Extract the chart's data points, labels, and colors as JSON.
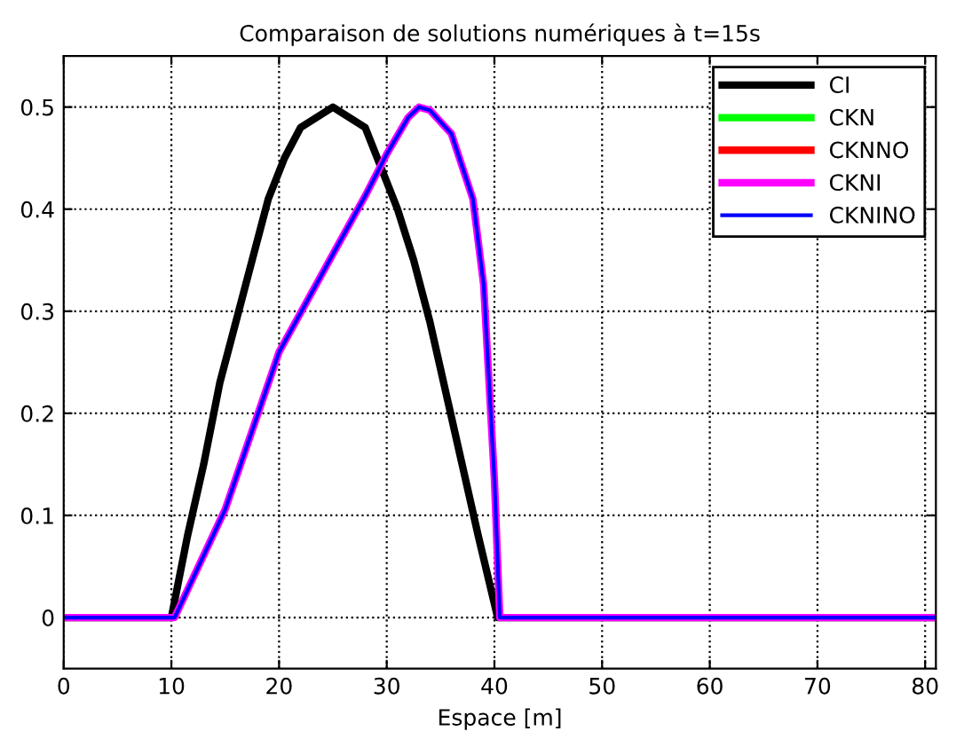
{
  "chart_data": {
    "type": "line",
    "title": "Comparaison de solutions numériques à t=15s",
    "xlabel": "Espace [m]",
    "xlim": [
      0,
      81
    ],
    "ylim": [
      -0.05,
      0.55
    ],
    "xticks": [
      0,
      10,
      20,
      30,
      40,
      50,
      60,
      70,
      80
    ],
    "yticks": [
      0,
      0.1,
      0.2,
      0.3,
      0.4,
      0.5
    ],
    "grid": true,
    "legend": "top right",
    "line_style": "solid",
    "marker": "none",
    "series": [
      {
        "name": "CI",
        "color": "#000000",
        "x": [
          0,
          10,
          11.5,
          13,
          14.5,
          16,
          17.5,
          19,
          20.5,
          22,
          23.5,
          25,
          26.5,
          28,
          29.5,
          31,
          32.5,
          34,
          35.5,
          37,
          38.5,
          40.3,
          81
        ],
        "values": [
          0,
          0,
          0.08,
          0.15,
          0.23,
          0.29,
          0.35,
          0.41,
          0.45,
          0.48,
          0.49,
          0.5,
          0.49,
          0.48,
          0.44,
          0.4,
          0.35,
          0.29,
          0.22,
          0.15,
          0.08,
          0,
          0
        ]
      },
      {
        "name": "CKN",
        "color": "#00ff00"
      },
      {
        "name": "CKNNO",
        "color": "#ff0000"
      },
      {
        "name": "CKNI",
        "color": "#ff00ff",
        "x": [
          0,
          10.3,
          15,
          20,
          25,
          28,
          30,
          32,
          33,
          34,
          36,
          38,
          39,
          40,
          40.5,
          81
        ],
        "values": [
          0,
          0,
          0.106,
          0.26,
          0.356,
          0.413,
          0.454,
          0.49,
          0.5,
          0.497,
          0.474,
          0.41,
          0.326,
          0.135,
          0,
          0
        ]
      },
      {
        "name": "CKNINO",
        "color": "#0000ff",
        "x": [
          0,
          10.3,
          15,
          20,
          25,
          28,
          30,
          32,
          33,
          34,
          36,
          38,
          39,
          40,
          40.5,
          81
        ],
        "values": [
          0,
          0,
          0.106,
          0.26,
          0.356,
          0.413,
          0.454,
          0.49,
          0.5,
          0.497,
          0.474,
          0.41,
          0.326,
          0.135,
          0,
          0
        ]
      }
    ]
  }
}
